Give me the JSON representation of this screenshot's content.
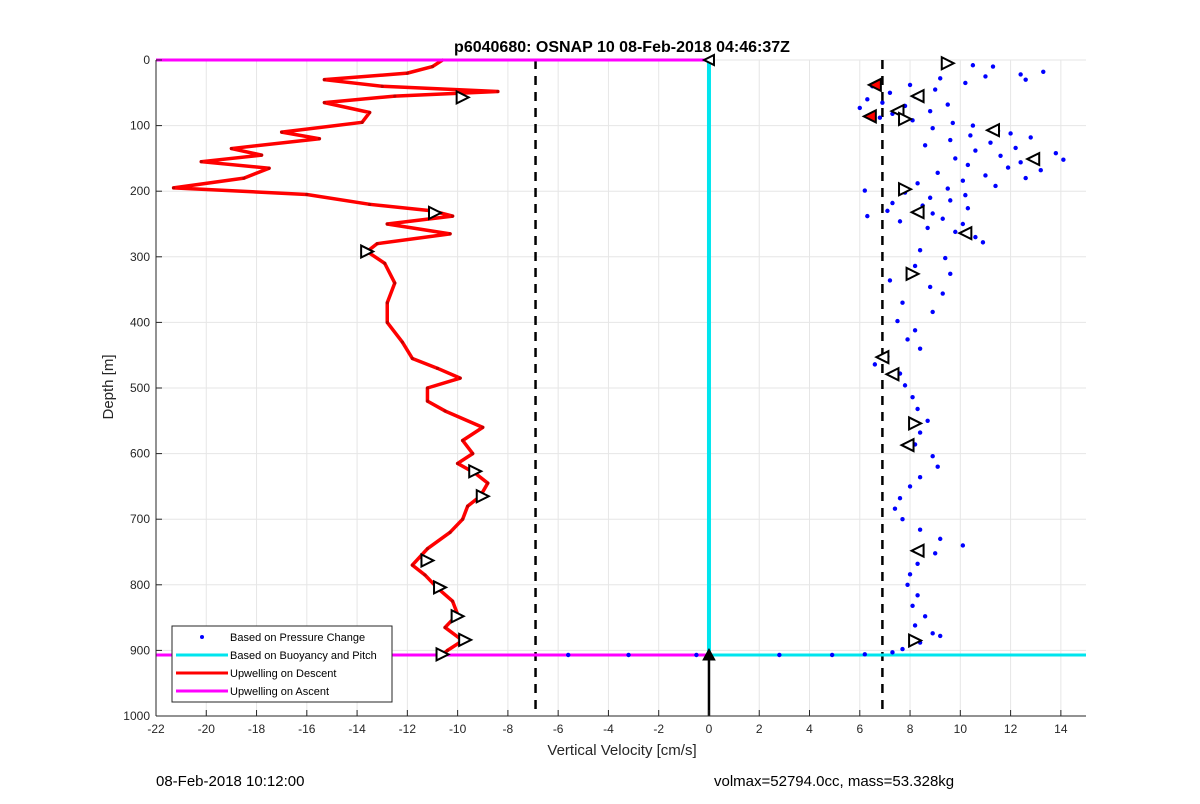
{
  "chart_data": {
    "type": "scatter",
    "title": "p6040680: OSNAP 10 08-Feb-2018 04:46:37Z",
    "xlabel": "Vertical Velocity [cm/s]",
    "ylabel": "Depth [m]",
    "xlim": [
      -22,
      15
    ],
    "ylim": [
      0,
      1000
    ],
    "y_reversed": true,
    "grid": true,
    "x_ticks": [
      -22,
      -20,
      -18,
      -16,
      -14,
      -12,
      -10,
      -8,
      -6,
      -4,
      -2,
      0,
      2,
      4,
      6,
      8,
      10,
      12,
      14
    ],
    "y_ticks": [
      0,
      100,
      200,
      300,
      400,
      500,
      600,
      700,
      800,
      900,
      1000
    ],
    "legend_position": "bottom-left",
    "legend": [
      {
        "label": "Based on Pressure Change",
        "color": "#0000ff",
        "marker": "dot"
      },
      {
        "label": "Based on Buoyancy and Pitch",
        "color": "#00e5ee",
        "marker": "line"
      },
      {
        "label": "Upwelling on Descent",
        "color": "#ff0000",
        "marker": "line"
      },
      {
        "label": "Upwelling on Ascent",
        "color": "#ff00ff",
        "marker": "line"
      }
    ],
    "reference_lines": {
      "vertical_dashed_x": [
        -6.9,
        6.9
      ],
      "cyan_vertical_x": 0,
      "cyan_horizontal_depth": 907,
      "magenta_descent_start_depth": 0,
      "magenta_ascent_end_depth": 907
    },
    "series": [
      {
        "name": "Upwelling on Descent",
        "color": "#ff0000",
        "points": [
          [
            -10.6,
            0
          ],
          [
            -11,
            10
          ],
          [
            -12,
            20
          ],
          [
            -15.3,
            30
          ],
          [
            -13,
            40
          ],
          [
            -8.4,
            48
          ],
          [
            -12.5,
            55
          ],
          [
            -15.3,
            65
          ],
          [
            -13.5,
            80
          ],
          [
            -13.8,
            95
          ],
          [
            -17,
            110
          ],
          [
            -15.5,
            120
          ],
          [
            -19,
            135
          ],
          [
            -17.8,
            145
          ],
          [
            -20.2,
            155
          ],
          [
            -17.5,
            165
          ],
          [
            -18.5,
            180
          ],
          [
            -21.3,
            195
          ],
          [
            -16,
            205
          ],
          [
            -13.5,
            220
          ],
          [
            -11,
            230
          ],
          [
            -10.2,
            238
          ],
          [
            -12.8,
            250
          ],
          [
            -10.3,
            265
          ],
          [
            -13.2,
            280
          ],
          [
            -13.6,
            292
          ],
          [
            -12.9,
            310
          ],
          [
            -12.5,
            340
          ],
          [
            -12.8,
            370
          ],
          [
            -12.8,
            400
          ],
          [
            -12.2,
            430
          ],
          [
            -11.8,
            455
          ],
          [
            -10.8,
            470
          ],
          [
            -9.9,
            485
          ],
          [
            -11.2,
            500
          ],
          [
            -11.2,
            520
          ],
          [
            -10.5,
            535
          ],
          [
            -9,
            560
          ],
          [
            -9.8,
            580
          ],
          [
            -9.4,
            600
          ],
          [
            -10,
            615
          ],
          [
            -9.3,
            630
          ],
          [
            -8.8,
            645
          ],
          [
            -9.1,
            665
          ],
          [
            -9.6,
            680
          ],
          [
            -9.8,
            700
          ],
          [
            -10.3,
            720
          ],
          [
            -11.2,
            745
          ],
          [
            -11.8,
            770
          ],
          [
            -11.3,
            785
          ],
          [
            -10.8,
            805
          ],
          [
            -10.2,
            825
          ],
          [
            -10,
            845
          ],
          [
            -10.5,
            865
          ],
          [
            -9.8,
            885
          ],
          [
            -10.4,
            900
          ],
          [
            -10.6,
            906
          ]
        ],
        "markers": [
          [
            -9.8,
            57
          ],
          [
            -10.9,
            233
          ],
          [
            -13.6,
            292
          ],
          [
            -9.3,
            627
          ],
          [
            -9.0,
            665
          ],
          [
            -11.2,
            763
          ],
          [
            -10.7,
            804
          ],
          [
            -10.0,
            848
          ],
          [
            -9.7,
            884
          ],
          [
            -10.6,
            906
          ]
        ]
      },
      {
        "name": "Based on Pressure Change",
        "color": "#0000ff",
        "points": [
          [
            9.6,
            5
          ],
          [
            10.5,
            8
          ],
          [
            11.3,
            10
          ],
          [
            13.3,
            18
          ],
          [
            12.4,
            22
          ],
          [
            11,
            25
          ],
          [
            9.2,
            28
          ],
          [
            12.6,
            30
          ],
          [
            10.2,
            35
          ],
          [
            8,
            38
          ],
          [
            6.5,
            40
          ],
          [
            9,
            45
          ],
          [
            7.2,
            50
          ],
          [
            8.2,
            56
          ],
          [
            6.3,
            60
          ],
          [
            6.9,
            65
          ],
          [
            9.5,
            68
          ],
          [
            7.8,
            70
          ],
          [
            6,
            73
          ],
          [
            8.8,
            78
          ],
          [
            7.3,
            82
          ],
          [
            6.8,
            88
          ],
          [
            8.1,
            92
          ],
          [
            9.7,
            96
          ],
          [
            10.5,
            100
          ],
          [
            8.9,
            104
          ],
          [
            11.5,
            108
          ],
          [
            12,
            112
          ],
          [
            10.4,
            115
          ],
          [
            12.8,
            118
          ],
          [
            9.6,
            122
          ],
          [
            11.2,
            126
          ],
          [
            8.6,
            130
          ],
          [
            12.2,
            134
          ],
          [
            10.6,
            138
          ],
          [
            13.8,
            142
          ],
          [
            11.6,
            146
          ],
          [
            9.8,
            150
          ],
          [
            14.1,
            152
          ],
          [
            12.4,
            156
          ],
          [
            10.3,
            160
          ],
          [
            11.9,
            164
          ],
          [
            13.2,
            168
          ],
          [
            9.1,
            172
          ],
          [
            11,
            176
          ],
          [
            12.6,
            180
          ],
          [
            10.1,
            184
          ],
          [
            8.3,
            188
          ],
          [
            11.4,
            192
          ],
          [
            9.5,
            196
          ],
          [
            6.2,
            199
          ],
          [
            7.8,
            202
          ],
          [
            10.2,
            206
          ],
          [
            8.8,
            210
          ],
          [
            9.6,
            214
          ],
          [
            7.3,
            218
          ],
          [
            8.5,
            222
          ],
          [
            10.3,
            226
          ],
          [
            7.1,
            230
          ],
          [
            8.9,
            234
          ],
          [
            6.3,
            238
          ],
          [
            9.3,
            242
          ],
          [
            7.6,
            246
          ],
          [
            10.1,
            250
          ],
          [
            8.7,
            256
          ],
          [
            9.8,
            262
          ],
          [
            10.6,
            270
          ],
          [
            10.9,
            278
          ],
          [
            8.4,
            290
          ],
          [
            9.4,
            302
          ],
          [
            8.2,
            314
          ],
          [
            9.6,
            326
          ],
          [
            7.2,
            336
          ],
          [
            8.8,
            346
          ],
          [
            9.3,
            356
          ],
          [
            7.7,
            370
          ],
          [
            8.9,
            384
          ],
          [
            7.5,
            398
          ],
          [
            8.2,
            412
          ],
          [
            7.9,
            426
          ],
          [
            8.4,
            440
          ],
          [
            7.1,
            452
          ],
          [
            6.6,
            464
          ],
          [
            7.6,
            478
          ],
          [
            7.8,
            496
          ],
          [
            8.1,
            514
          ],
          [
            8.3,
            532
          ],
          [
            8.7,
            550
          ],
          [
            8.4,
            568
          ],
          [
            8.2,
            586
          ],
          [
            8.9,
            604
          ],
          [
            9.1,
            620
          ],
          [
            8.4,
            636
          ],
          [
            8,
            650
          ],
          [
            7.6,
            668
          ],
          [
            7.4,
            684
          ],
          [
            7.7,
            700
          ],
          [
            8.4,
            716
          ],
          [
            9.2,
            730
          ],
          [
            10.1,
            740
          ],
          [
            9,
            752
          ],
          [
            8.3,
            768
          ],
          [
            8,
            784
          ],
          [
            7.9,
            800
          ],
          [
            8.3,
            816
          ],
          [
            8.1,
            832
          ],
          [
            8.6,
            848
          ],
          [
            8.2,
            862
          ],
          [
            8.9,
            874
          ],
          [
            9.2,
            878
          ],
          [
            8.4,
            888
          ],
          [
            7.7,
            898
          ],
          [
            7.3,
            903
          ],
          [
            6.2,
            906
          ],
          [
            4.9,
            907
          ],
          [
            2.8,
            907
          ],
          [
            -0.5,
            907
          ],
          [
            -3.2,
            907
          ],
          [
            -5.6,
            907
          ]
        ],
        "markers": [
          [
            9.5,
            5
          ],
          [
            8.3,
            55
          ],
          [
            7.5,
            78
          ],
          [
            7.8,
            90
          ],
          [
            11.3,
            107
          ],
          [
            12.9,
            151
          ],
          [
            7.8,
            197
          ],
          [
            8.3,
            232
          ],
          [
            10.2,
            264
          ],
          [
            8.1,
            326
          ],
          [
            6.9,
            453
          ],
          [
            7.3,
            479
          ],
          [
            8.2,
            554
          ],
          [
            7.9,
            587
          ],
          [
            8.3,
            748
          ],
          [
            8.2,
            885
          ]
        ],
        "red_markers": [
          [
            6.6,
            38
          ],
          [
            6.4,
            86
          ]
        ]
      }
    ]
  },
  "footer": {
    "left": "08-Feb-2018 10:12:00",
    "right": "volmax=52794.0cc, mass=53.328kg"
  }
}
